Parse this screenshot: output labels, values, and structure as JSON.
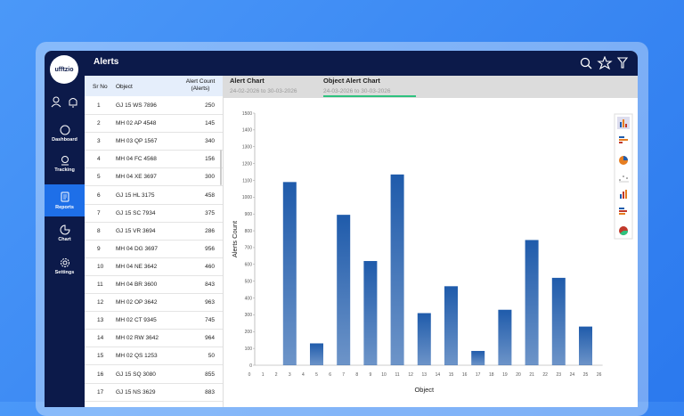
{
  "app": {
    "logo": "ufftzio"
  },
  "sidebar": [
    {
      "label": "Dashboard"
    },
    {
      "label": "Tracking"
    },
    {
      "label": "Reports"
    },
    {
      "label": "Chart"
    },
    {
      "label": "Settings"
    }
  ],
  "header": {
    "title": "Alerts"
  },
  "table": {
    "columns": [
      "Sr No",
      "Object",
      "Alert Count (Alerts)"
    ],
    "rows": [
      [
        1,
        "GJ 15 WS 7896",
        250
      ],
      [
        2,
        "MH 02 AP 4548",
        145
      ],
      [
        3,
        "MH 03 QP 1567",
        340
      ],
      [
        4,
        "MH 04 FC 4568",
        156
      ],
      [
        5,
        "MH 04 XE 3697",
        300
      ],
      [
        6,
        "GJ 15 HL 3175",
        458
      ],
      [
        7,
        "GJ 15 SC 7934",
        375
      ],
      [
        8,
        "GJ 15 VR 3694",
        286
      ],
      [
        9,
        "MH 04 DG 3697",
        956
      ],
      [
        10,
        "MH 04 NE 3642",
        460
      ],
      [
        11,
        "MH 04 BR 3600",
        843
      ],
      [
        12,
        "MH 02 OP 3642",
        963
      ],
      [
        13,
        "MH 02 CT 9345",
        745
      ],
      [
        14,
        "MH 02 RW 3642",
        964
      ],
      [
        15,
        "MH 02 QS 1253",
        50
      ],
      [
        16,
        "GJ 15 SQ 3080",
        855
      ],
      [
        17,
        "GJ 15 NS 3629",
        883
      ]
    ]
  },
  "tabs": [
    {
      "label": "Alert Chart",
      "date_range": "24-02-2026 to 30-03-2026"
    },
    {
      "label": "Object Alert Chart",
      "date_range": "24-03-2026 to 30-03-2026"
    }
  ],
  "chart_data": {
    "type": "bar",
    "x_label": "Object",
    "y_label": "Alerts Count",
    "color": "#1f5bab",
    "categories": [
      "0",
      "1",
      "2",
      "3",
      "4",
      "5",
      "6",
      "7",
      "8",
      "9",
      "10",
      "11",
      "12",
      "13",
      "14",
      "15",
      "16",
      "17",
      "18",
      "19",
      "20",
      "21",
      "22",
      "23",
      "24",
      "25",
      "26"
    ],
    "values": [
      null,
      null,
      null,
      1090,
      null,
      130,
      null,
      895,
      null,
      620,
      null,
      1135,
      null,
      310,
      null,
      470,
      null,
      85,
      null,
      330,
      null,
      745,
      null,
      520,
      null,
      230,
      null
    ],
    "ylim": [
      0,
      1500
    ],
    "yticks": [
      0,
      100,
      200,
      300,
      400,
      500,
      600,
      700,
      800,
      900,
      1000,
      1100,
      1200,
      1300,
      1400,
      1500
    ]
  }
}
